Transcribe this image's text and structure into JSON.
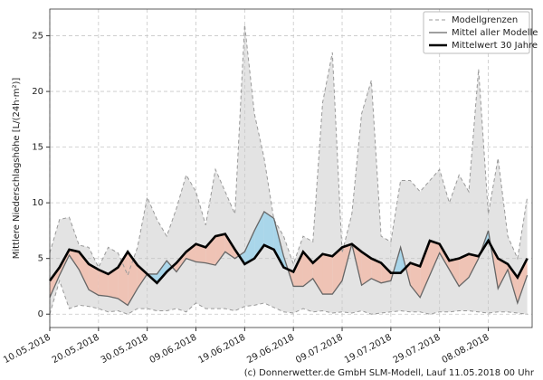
{
  "chart_data": {
    "type": "line",
    "y_label": "Mittlere Niederschlagshöhe [L/(24h·m²)]",
    "footer": "(c) Donnerwetter.de GmbH SLM-Modell, Lauf 11.05.2018 00 Uhr",
    "x": [
      "2018-05-10",
      "2018-05-12",
      "2018-05-14",
      "2018-05-16",
      "2018-05-18",
      "2018-05-20",
      "2018-05-22",
      "2018-05-24",
      "2018-05-26",
      "2018-05-28",
      "2018-05-30",
      "2018-06-01",
      "2018-06-03",
      "2018-06-05",
      "2018-06-07",
      "2018-06-09",
      "2018-06-11",
      "2018-06-13",
      "2018-06-15",
      "2018-06-17",
      "2018-06-19",
      "2018-06-21",
      "2018-06-23",
      "2018-06-25",
      "2018-06-27",
      "2018-06-29",
      "2018-07-01",
      "2018-07-03",
      "2018-07-05",
      "2018-07-07",
      "2018-07-09",
      "2018-07-11",
      "2018-07-13",
      "2018-07-15",
      "2018-07-17",
      "2018-07-19",
      "2018-07-21",
      "2018-07-23",
      "2018-07-25",
      "2018-07-27",
      "2018-07-29",
      "2018-07-31",
      "2018-08-02",
      "2018-08-04",
      "2018-08-06",
      "2018-08-08",
      "2018-08-10",
      "2018-08-12",
      "2018-08-14",
      "2018-08-16"
    ],
    "series": [
      {
        "name": "Modellgrenzen",
        "color": "#999999",
        "style": "dashed",
        "values": [
          5.5,
          8.5,
          8.7,
          6.2,
          6.0,
          4.2,
          6.0,
          5.5,
          3.5,
          6.0,
          10.5,
          8.5,
          7.0,
          9.5,
          12.5,
          11.0,
          8.0,
          13.0,
          11.0,
          9.0,
          26.0,
          18.0,
          14.0,
          8.5,
          7.0,
          4.5,
          7.0,
          6.5,
          19.0,
          23.5,
          5.5,
          9.0,
          18.0,
          21.0,
          7.0,
          6.5,
          12.0,
          12.0,
          11.0,
          12.0,
          13.0,
          10.0,
          12.5,
          11.0,
          22.0,
          9.0,
          14.0,
          7.0,
          5.0,
          10.5
        ],
        "lower_values": [
          0,
          3.0,
          0.5,
          0.8,
          0.7,
          0.5,
          0.2,
          0.3,
          0,
          0.5,
          0.5,
          0.3,
          0.3,
          0.5,
          0.2,
          1.0,
          0.5,
          0.5,
          0.5,
          0.3,
          0.7,
          0.8,
          1.0,
          0.6,
          0.2,
          0.1,
          0.5,
          0.2,
          0.3,
          0.1,
          0.2,
          0.1,
          0.3,
          0,
          0.1,
          0.2,
          0.3,
          0.2,
          0.2,
          0,
          0.2,
          0.2,
          0.3,
          0.3,
          0.2,
          0.1,
          0.2,
          0.2,
          0.1,
          0
        ]
      },
      {
        "name": "Mittel aller Modelle",
        "color": "#666666",
        "style": "thin",
        "values": [
          1.5,
          3.5,
          5.3,
          4.0,
          2.2,
          1.7,
          1.6,
          1.4,
          0.8,
          2.3,
          3.6,
          3.6,
          4.8,
          3.8,
          5.0,
          4.7,
          4.6,
          4.4,
          5.6,
          5.0,
          5.6,
          7.5,
          9.2,
          8.6,
          5.2,
          2.5,
          2.5,
          3.2,
          1.8,
          1.8,
          3.0,
          6.3,
          2.6,
          3.2,
          2.8,
          3.0,
          6.0,
          2.6,
          1.5,
          3.5,
          5.5,
          4.0,
          2.5,
          3.3,
          5.0,
          7.5,
          2.3,
          4.0,
          1.0,
          3.5
        ]
      },
      {
        "name": "Mittelwert 30 Jahre",
        "color": "#000000",
        "style": "thick",
        "values": [
          3.0,
          4.2,
          5.8,
          5.6,
          4.5,
          4.0,
          3.6,
          4.2,
          5.6,
          4.4,
          3.6,
          2.8,
          3.8,
          4.6,
          5.6,
          6.3,
          6.0,
          7.0,
          7.2,
          5.8,
          4.5,
          5.0,
          6.2,
          5.8,
          4.2,
          3.8,
          5.6,
          4.6,
          5.4,
          5.2,
          6.0,
          6.3,
          5.6,
          5.0,
          4.6,
          3.7,
          3.7,
          4.6,
          4.3,
          6.6,
          6.3,
          4.8,
          5.0,
          5.4,
          5.2,
          6.6,
          5.0,
          4.5,
          3.3,
          5.0
        ]
      }
    ],
    "band_color": "#e3e3e3",
    "above_color": "#a9d6ea",
    "below_color": "#efc3b5",
    "xlim": [
      "2018-05-10",
      "2018-08-17"
    ],
    "xticks": [
      {
        "value": "2018-05-10",
        "label": "10.05.2018"
      },
      {
        "value": "2018-05-20",
        "label": "20.05.2018"
      },
      {
        "value": "2018-05-30",
        "label": "30.05.2018"
      },
      {
        "value": "2018-06-09",
        "label": "09.06.2018"
      },
      {
        "value": "2018-06-19",
        "label": "19.06.2018"
      },
      {
        "value": "2018-06-29",
        "label": "29.06.2018"
      },
      {
        "value": "2018-07-09",
        "label": "09.07.2018"
      },
      {
        "value": "2018-07-19",
        "label": "19.07.2018"
      },
      {
        "value": "2018-07-29",
        "label": "29.07.2018"
      },
      {
        "value": "2018-08-08",
        "label": "08.08.2018"
      }
    ],
    "ylim": [
      -1.2,
      27.4
    ],
    "yticks": [
      0,
      5,
      10,
      15,
      20,
      25
    ],
    "grid": true,
    "legend": "upper right"
  }
}
